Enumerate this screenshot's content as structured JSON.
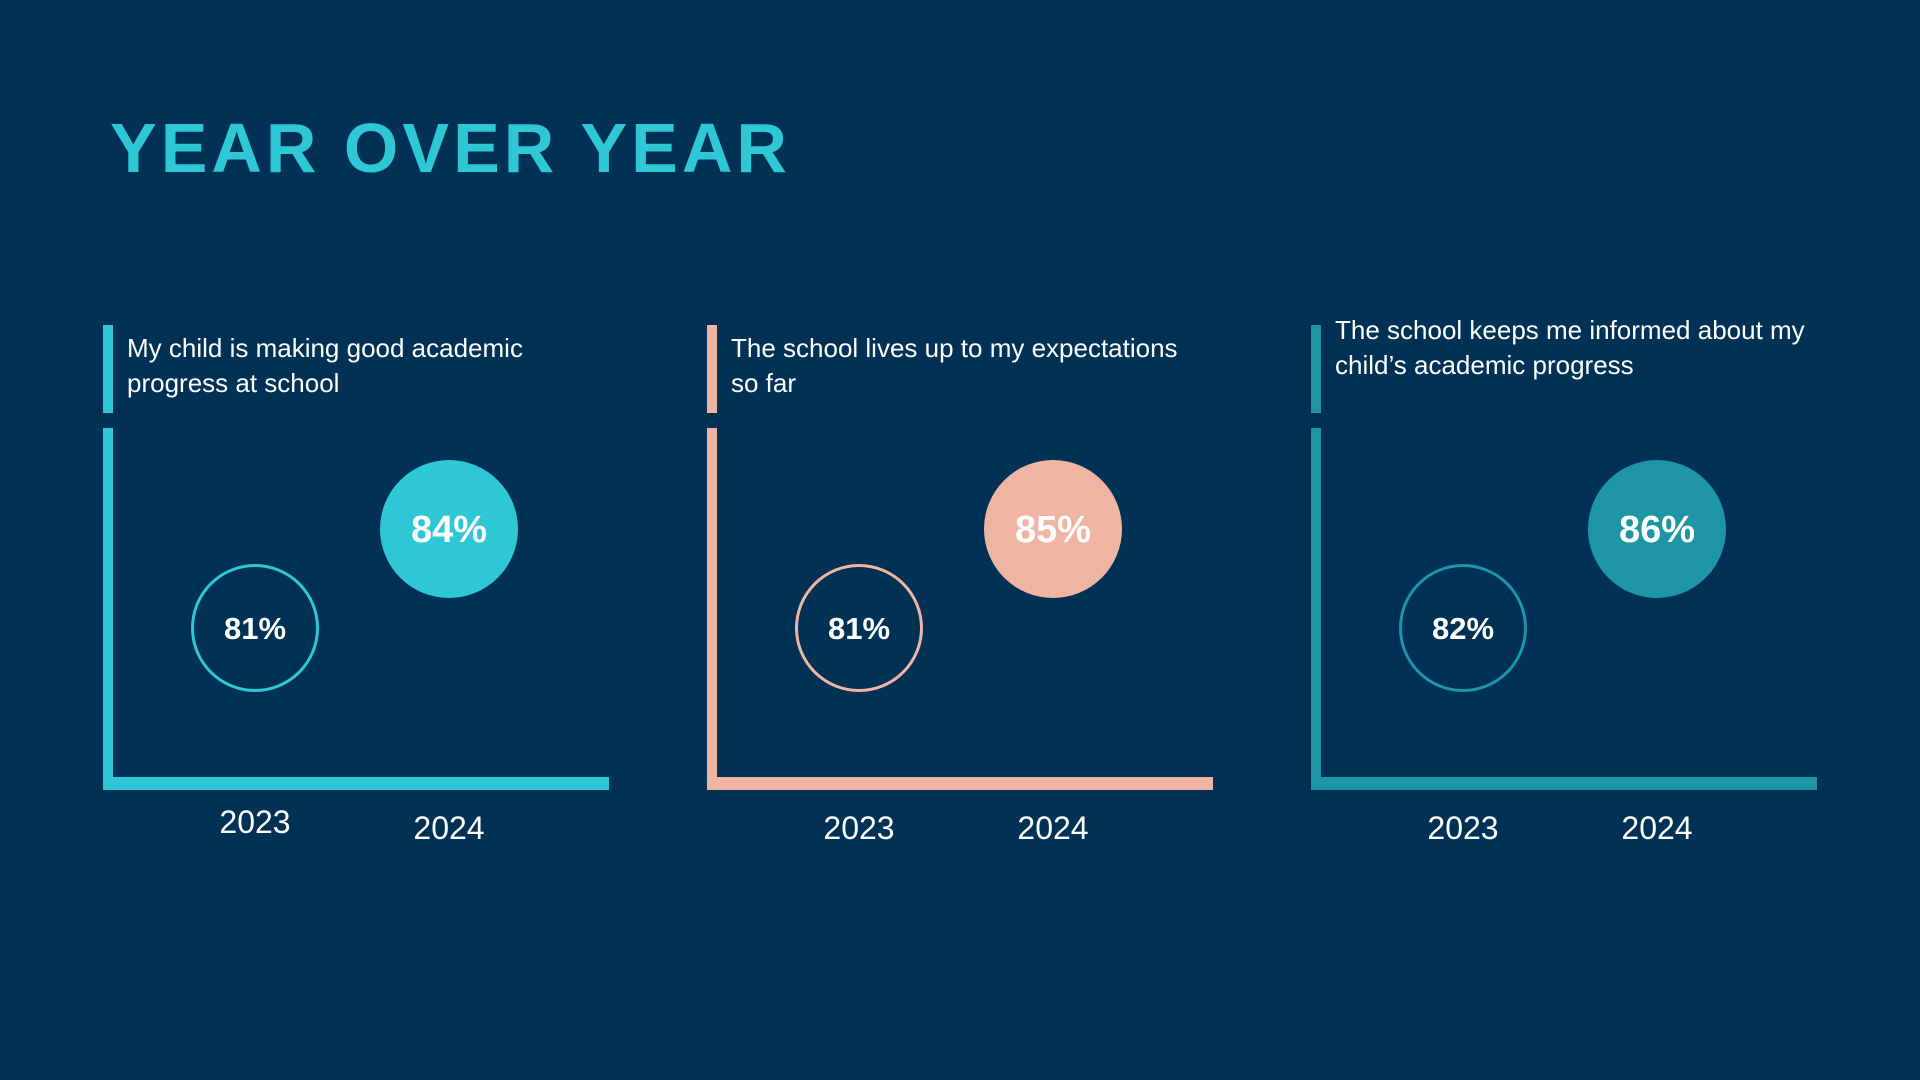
{
  "slide": {
    "title": "YEAR OVER YEAR",
    "background": "#013155"
  },
  "chart_data": [
    {
      "type": "scatter",
      "title": "My child is making good academic progress at school",
      "categories": [
        "2023",
        "2024"
      ],
      "values": [
        81,
        84
      ],
      "labels": [
        "81%",
        "84%"
      ],
      "unit": "%",
      "color": "#2ec7d6"
    },
    {
      "type": "scatter",
      "title": "The school lives up to my expectations so far",
      "categories": [
        "2023",
        "2024"
      ],
      "values": [
        81,
        85
      ],
      "labels": [
        "81%",
        "85%"
      ],
      "unit": "%",
      "color": "#f0b4a2"
    },
    {
      "type": "scatter",
      "title": "The school keeps me informed about my child’s academic progress",
      "categories": [
        "2023",
        "2024"
      ],
      "values": [
        82,
        86
      ],
      "labels": [
        "82%",
        "86%"
      ],
      "unit": "%",
      "color": "#1d95a4"
    }
  ]
}
